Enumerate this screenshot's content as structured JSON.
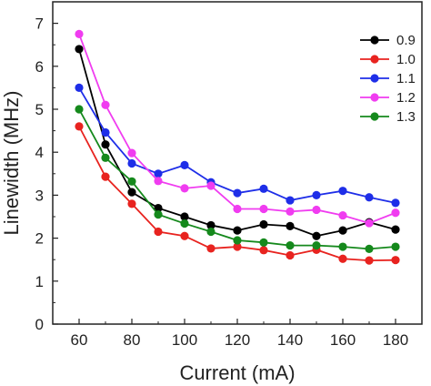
{
  "chart_data": {
    "type": "line",
    "title": "",
    "xlabel": "Current (mA)",
    "ylabel": "Linewidth (MHz)",
    "xlim": [
      50,
      190
    ],
    "ylim": [
      0,
      7.5
    ],
    "xticks": [
      60,
      80,
      100,
      120,
      140,
      160,
      180
    ],
    "yticks": [
      0,
      1,
      2,
      3,
      4,
      5,
      6,
      7
    ],
    "grid": false,
    "legend_position": "top-right",
    "x": [
      60,
      70,
      80,
      90,
      100,
      110,
      120,
      130,
      140,
      150,
      160,
      170,
      180
    ],
    "series": [
      {
        "name": "0.9",
        "color": "#000000",
        "values": [
          6.4,
          4.18,
          3.07,
          2.7,
          2.5,
          2.3,
          2.18,
          2.32,
          2.28,
          2.05,
          2.18,
          2.37,
          2.2
        ]
      },
      {
        "name": "1.0",
        "color": "#e8231f",
        "values": [
          4.6,
          3.43,
          2.8,
          2.15,
          2.05,
          1.76,
          1.8,
          1.72,
          1.6,
          1.73,
          1.52,
          1.48,
          1.49
        ]
      },
      {
        "name": "1.1",
        "color": "#1e2ee8",
        "values": [
          5.5,
          4.46,
          3.74,
          3.5,
          3.7,
          3.3,
          3.05,
          3.15,
          2.88,
          3.0,
          3.1,
          2.95,
          2.82
        ]
      },
      {
        "name": "1.2",
        "color": "#f03cf0",
        "values": [
          6.75,
          5.1,
          3.98,
          3.33,
          3.16,
          3.22,
          2.68,
          2.68,
          2.62,
          2.66,
          2.53,
          2.35,
          2.59
        ]
      },
      {
        "name": "1.3",
        "color": "#15891c",
        "values": [
          5.0,
          3.87,
          3.32,
          2.55,
          2.34,
          2.15,
          1.95,
          1.9,
          1.83,
          1.83,
          1.8,
          1.75,
          1.8
        ]
      }
    ]
  }
}
